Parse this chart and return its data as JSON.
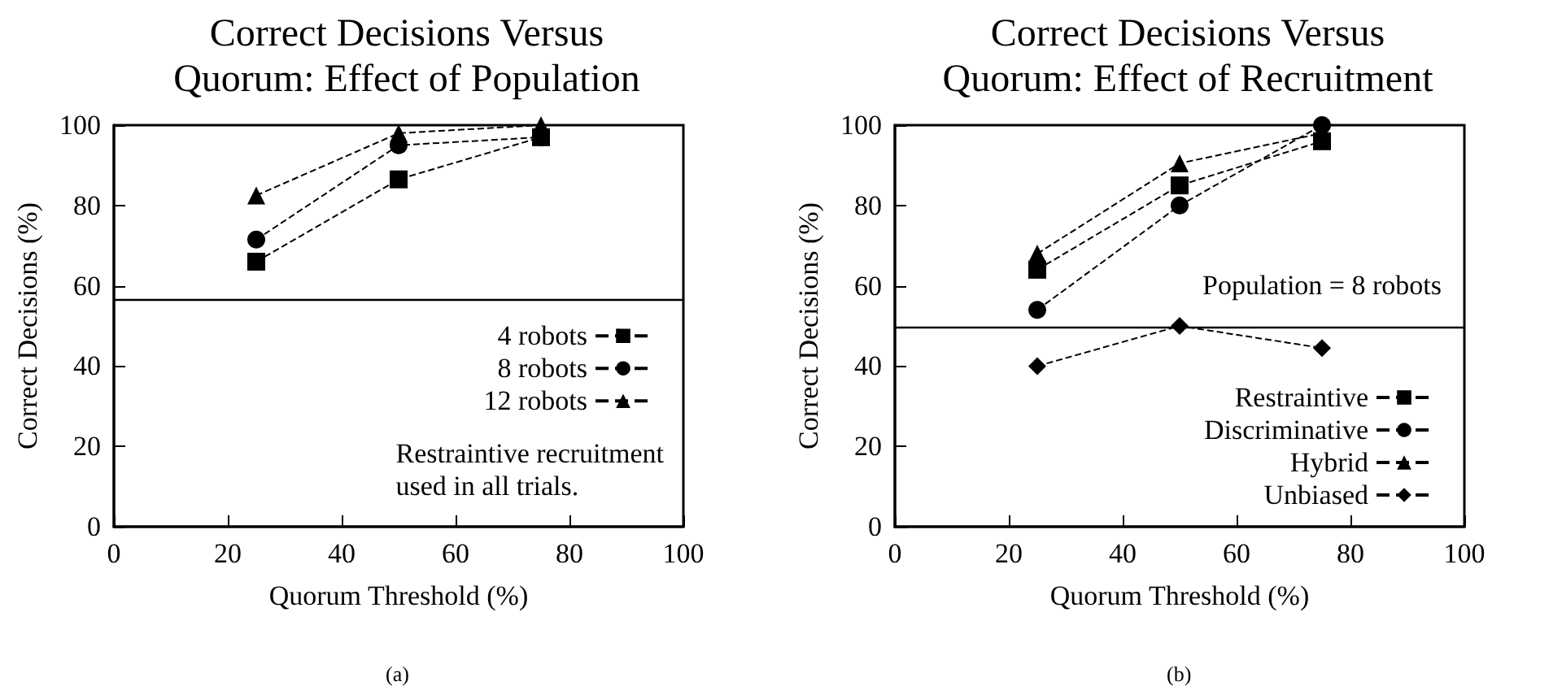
{
  "chart_data": [
    {
      "type": "line",
      "title": "Correct Decisions Versus\nQuorum: Effect of Population",
      "xlabel": "Quorum Threshold (%)",
      "ylabel": "Correct Decisions (%)",
      "x": [
        25,
        50,
        75
      ],
      "xlim": [
        0,
        100
      ],
      "xticks": [
        0,
        20,
        40,
        60,
        80,
        100
      ],
      "ylim": [
        0,
        100
      ],
      "yticks": [
        0,
        20,
        40,
        60,
        80,
        100
      ],
      "grid": false,
      "legend": "right",
      "line_style": "dashed",
      "series": [
        {
          "name": "4 robots",
          "color": "#000000",
          "marker": "square",
          "values": [
            66,
            86.5,
            97
          ]
        },
        {
          "name": "8 robots",
          "color": "#000000",
          "marker": "circle",
          "values": [
            71.5,
            95,
            97
          ]
        },
        {
          "name": "12 robots",
          "color": "#000000",
          "marker": "triangle",
          "values": [
            82.5,
            98,
            100
          ]
        }
      ],
      "ref_lines": [
        {
          "axis": "y",
          "value": 56.5,
          "label": null,
          "color": "#000000"
        }
      ],
      "annotations": [
        "Restraintive recruitment\nused in all trials.",
        "(a)"
      ]
    },
    {
      "type": "line",
      "title": "Correct Decisions Versus\nQuorum: Effect of Recruitment",
      "xlabel": "Quorum Threshold (%)",
      "ylabel": "Correct Decisions (%)",
      "x": [
        25,
        50,
        75
      ],
      "xlim": [
        0,
        100
      ],
      "xticks": [
        0,
        20,
        40,
        60,
        80,
        100
      ],
      "ylim": [
        0,
        100
      ],
      "yticks": [
        0,
        20,
        40,
        60,
        80,
        100
      ],
      "grid": false,
      "legend": "bottom right",
      "line_style": "dashed",
      "series": [
        {
          "name": "Restraintive",
          "color": "#000000",
          "marker": "square",
          "values": [
            64,
            85,
            96
          ]
        },
        {
          "name": "Discriminative",
          "color": "#000000",
          "marker": "circle",
          "values": [
            54,
            80,
            100
          ]
        },
        {
          "name": "Hybrid",
          "color": "#000000",
          "marker": "triangle",
          "values": [
            68,
            90.5,
            98
          ]
        },
        {
          "name": "Unbiased",
          "color": "#000000",
          "marker": "diamond",
          "values": [
            40,
            50,
            44.5
          ]
        }
      ],
      "ref_lines": [
        {
          "axis": "y",
          "value": 49.5,
          "label": null,
          "color": "#000000"
        }
      ],
      "annotations": [
        "Population = 8 robots",
        "(b)"
      ]
    }
  ]
}
